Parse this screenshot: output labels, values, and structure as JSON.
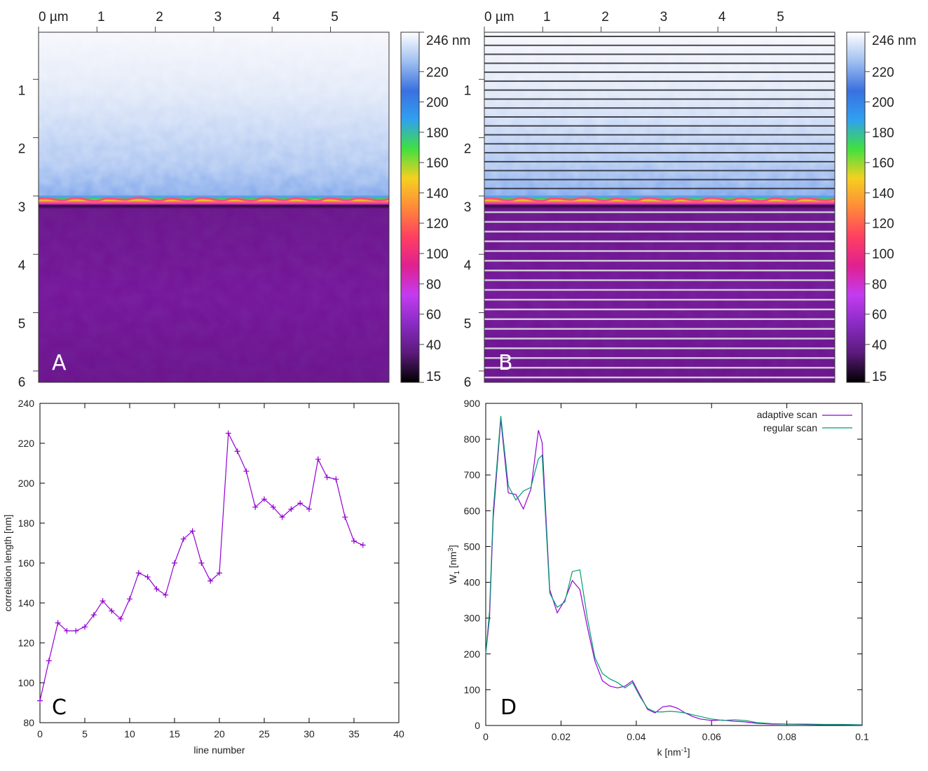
{
  "colors": {
    "purple": "#9400d3",
    "green": "#009e73",
    "gradient": [
      "#000000",
      "#5a1a7a",
      "#8a2bc4",
      "#c33cf0",
      "#e02090",
      "#ff4060",
      "#ff8a3a",
      "#f5d020",
      "#40e040",
      "#30a0f0",
      "#3a70e0",
      "#a0c0f0",
      "#ffffff"
    ]
  },
  "images": {
    "xaxis": {
      "unit": "µm",
      "ticks": [
        "0 µm",
        "1",
        "2",
        "3",
        "4",
        "5"
      ],
      "range": [
        0,
        6
      ]
    },
    "yaxis": {
      "ticks": [
        "1",
        "2",
        "3",
        "4",
        "5",
        "6"
      ],
      "range": [
        0,
        6
      ]
    },
    "colorbar": {
      "unit": "nm",
      "labels": [
        "246 nm",
        "220",
        "200",
        "180",
        "160",
        "140",
        "120",
        "100",
        "80",
        "60",
        "40",
        "15"
      ],
      "values": [
        246,
        220,
        200,
        180,
        160,
        140,
        120,
        100,
        80,
        60,
        40,
        15
      ],
      "min": 15,
      "max": 246
    },
    "panelA": {
      "label": "A"
    },
    "panelB": {
      "label": "B",
      "dark_lines": 18,
      "light_lines": 18
    }
  },
  "chart_data": [
    {
      "id": "C",
      "type": "line",
      "label": "C",
      "xlabel": "line number",
      "ylabel": "correlation length [nm]",
      "xlim": [
        0,
        40
      ],
      "ylim": [
        80,
        240
      ],
      "xticks": [
        0,
        5,
        10,
        15,
        20,
        25,
        30,
        35,
        40
      ],
      "yticks": [
        80,
        100,
        120,
        140,
        160,
        180,
        200,
        220,
        240
      ],
      "x": [
        0,
        1,
        2,
        3,
        4,
        5,
        6,
        7,
        8,
        9,
        10,
        11,
        12,
        13,
        14,
        15,
        16,
        17,
        18,
        19,
        20,
        21,
        22,
        23,
        24,
        25,
        26,
        27,
        28,
        29,
        30,
        31,
        32,
        33,
        34,
        35,
        36
      ],
      "values": [
        91,
        111,
        130,
        126,
        126,
        128,
        134,
        141,
        136,
        132,
        142,
        155,
        153,
        147,
        144,
        160,
        172,
        176,
        160,
        151,
        155,
        225,
        216,
        206,
        188,
        192,
        188,
        183,
        187,
        190,
        187,
        212,
        203,
        202,
        183,
        171,
        169
      ]
    },
    {
      "id": "D",
      "type": "line",
      "label": "D",
      "xlabel": "k [nm",
      "xlabel_sup": "-1",
      "xlabel_end": "]",
      "ylabel": "W",
      "ylabel_sub": "1",
      "ylabel_mid": " [nm",
      "ylabel_sup": "3",
      "ylabel_end": "]",
      "xlim": [
        0,
        0.1
      ],
      "ylim": [
        0,
        900
      ],
      "xticks": [
        "0",
        "0.02",
        "0.04",
        "0.06",
        "0.08",
        "0.1"
      ],
      "xtick_values": [
        0,
        0.02,
        0.04,
        0.06,
        0.08,
        0.1
      ],
      "yticks": [
        0,
        100,
        200,
        300,
        400,
        500,
        600,
        700,
        800,
        900
      ],
      "legend_position": "top-right",
      "series": [
        {
          "name": "adaptive scan",
          "x": [
            0,
            0.001,
            0.002,
            0.004,
            0.006,
            0.008,
            0.01,
            0.012,
            0.014,
            0.015,
            0.017,
            0.019,
            0.021,
            0.023,
            0.025,
            0.027,
            0.029,
            0.031,
            0.033,
            0.035,
            0.037,
            0.039,
            0.041,
            0.043,
            0.045,
            0.047,
            0.049,
            0.051,
            0.053,
            0.055,
            0.057,
            0.06,
            0.063,
            0.066,
            0.069,
            0.072,
            0.076,
            0.08,
            0.085,
            0.09,
            0.095,
            0.1
          ],
          "values": [
            200,
            300,
            580,
            855,
            650,
            645,
            605,
            660,
            825,
            790,
            380,
            315,
            350,
            405,
            380,
            275,
            180,
            125,
            110,
            105,
            110,
            125,
            85,
            45,
            35,
            52,
            55,
            48,
            35,
            25,
            18,
            14,
            15,
            12,
            10,
            6,
            4,
            4,
            3,
            2,
            2,
            1
          ]
        },
        {
          "name": "regular scan",
          "x": [
            0,
            0.001,
            0.002,
            0.004,
            0.006,
            0.008,
            0.01,
            0.012,
            0.014,
            0.015,
            0.017,
            0.019,
            0.021,
            0.023,
            0.025,
            0.027,
            0.029,
            0.031,
            0.033,
            0.035,
            0.037,
            0.039,
            0.041,
            0.043,
            0.045,
            0.047,
            0.049,
            0.051,
            0.053,
            0.055,
            0.057,
            0.06,
            0.063,
            0.066,
            0.069,
            0.072,
            0.076,
            0.08,
            0.085,
            0.09,
            0.095,
            0.1
          ],
          "values": [
            200,
            320,
            600,
            865,
            670,
            630,
            655,
            665,
            745,
            755,
            370,
            330,
            345,
            430,
            435,
            300,
            190,
            145,
            130,
            120,
            105,
            120,
            80,
            48,
            38,
            38,
            40,
            38,
            35,
            30,
            25,
            18,
            14,
            16,
            14,
            8,
            5,
            4,
            4,
            3,
            3,
            2
          ]
        }
      ]
    }
  ]
}
